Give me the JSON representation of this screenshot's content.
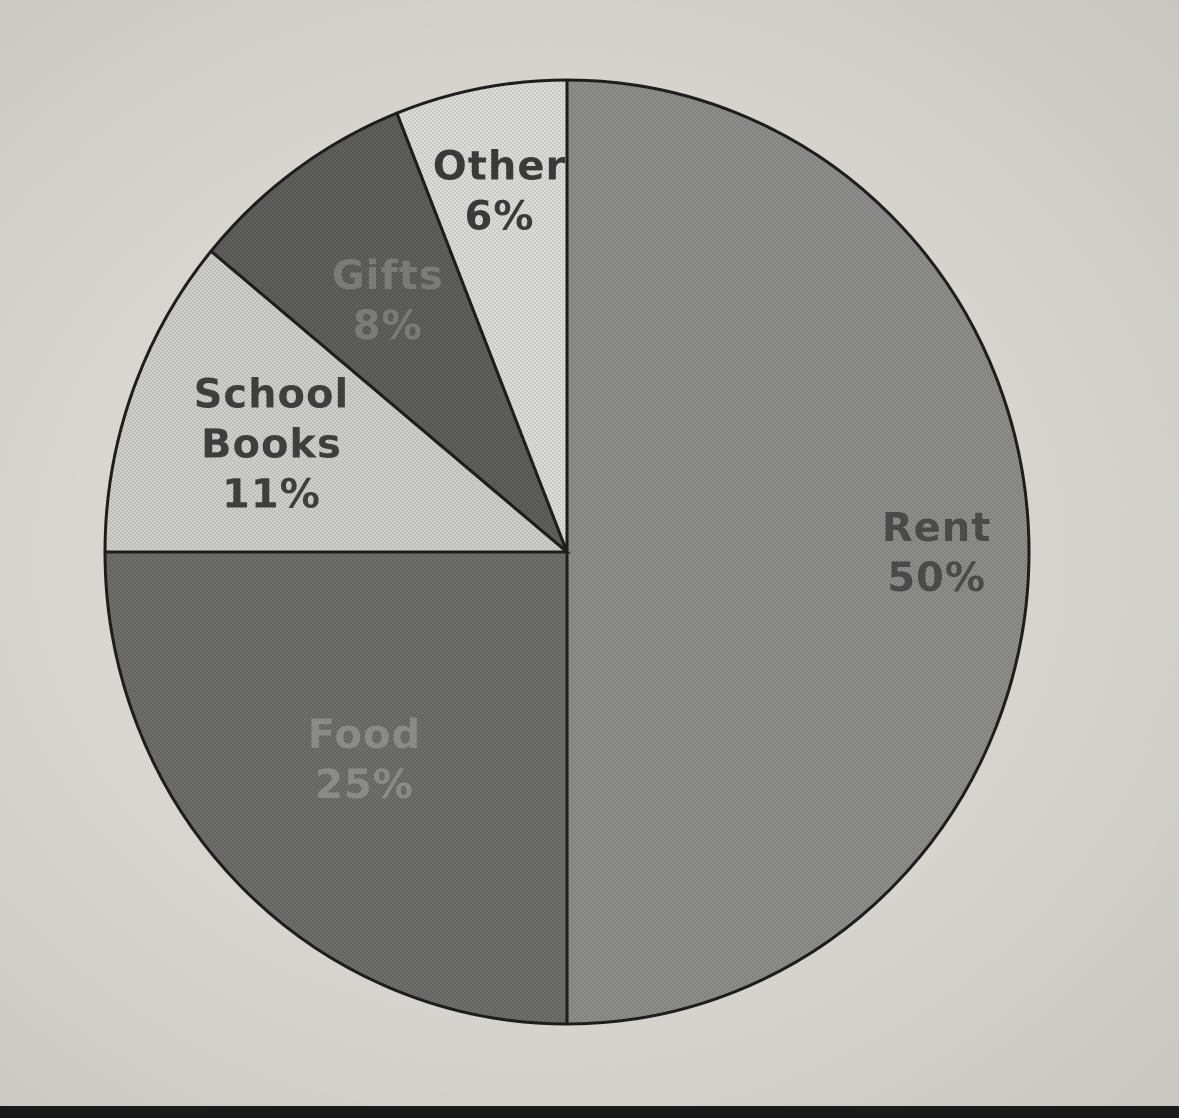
{
  "chart_data": {
    "type": "pie",
    "title": "",
    "slices": [
      {
        "label": "Rent",
        "value": 50,
        "value_label": "50%",
        "color": "#8e8e8c",
        "label_color": "#4a4a4a"
      },
      {
        "label": "Food",
        "value": 25,
        "value_label": "25%",
        "color": "#6e6e6c",
        "label_color": "#8a8a88"
      },
      {
        "label": "School Books",
        "value": 11,
        "value_label": "11%",
        "color": "#cfcfcc",
        "label_color": "#3e3e3e"
      },
      {
        "label": "Gifts",
        "value": 8,
        "value_label": "8%",
        "color": "#5f5f5d",
        "label_color": "#7a7a78"
      },
      {
        "label": "Other",
        "value": 6,
        "value_label": "6%",
        "color": "#dcdcd9",
        "label_color": "#3a3a3a"
      }
    ],
    "start_angle_deg": 0,
    "direction": "clockwise",
    "legend": "none"
  }
}
